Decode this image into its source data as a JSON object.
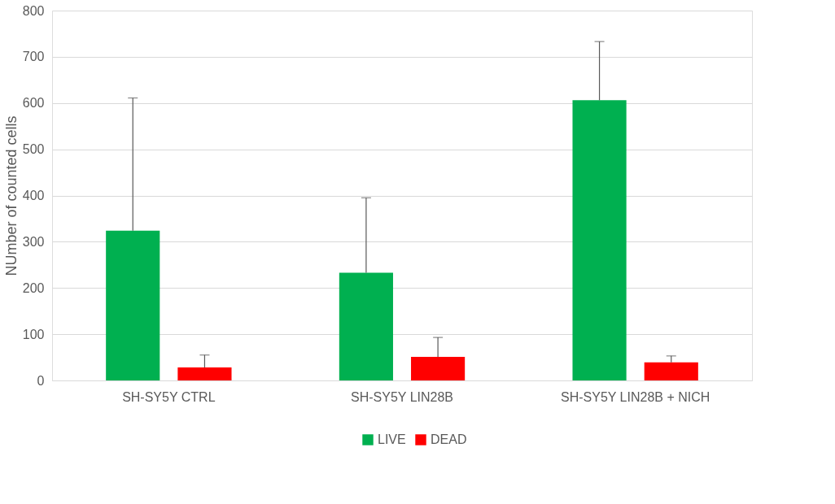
{
  "chart_data": {
    "type": "bar",
    "ylabel": "NUmber of counted cells",
    "categories": [
      "SH-SY5Y CTRL",
      "SH-SY5Y LIN28B",
      "SH-SY5Y LIN28B + NICH"
    ],
    "series": [
      {
        "name": "LIVE",
        "color": "#00b050",
        "values": [
          324,
          233,
          606
        ],
        "errors": [
          [
            324,
            611
          ],
          [
            233,
            395
          ],
          [
            606,
            733
          ]
        ]
      },
      {
        "name": "DEAD",
        "color": "#ff0000",
        "values": [
          28,
          51,
          39
        ],
        "errors": [
          [
            28,
            55
          ],
          [
            51,
            93
          ],
          [
            39,
            53
          ]
        ]
      }
    ],
    "ylim": [
      0,
      800
    ],
    "yticks": [
      0,
      100,
      200,
      300,
      400,
      500,
      600,
      700,
      800
    ],
    "grid": "y",
    "legend": "bottom"
  }
}
